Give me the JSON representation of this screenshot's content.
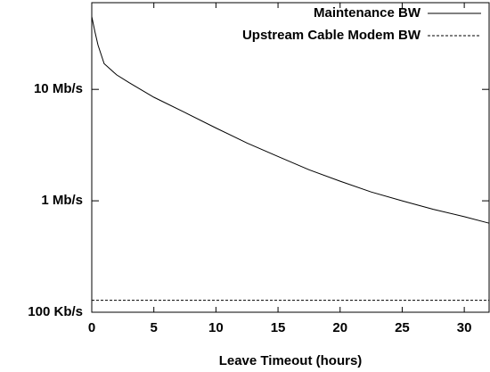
{
  "chart_data": {
    "type": "line",
    "xlabel": "Leave Timeout (hours)",
    "xlim": [
      0,
      32
    ],
    "xticks": [
      0,
      5,
      10,
      15,
      20,
      25,
      30
    ],
    "ylim": [
      0.1,
      60
    ],
    "yscale": "log",
    "yticks": [
      {
        "value": 0.1,
        "label": "100 Kb/s"
      },
      {
        "value": 1,
        "label": "1 Mb/s"
      },
      {
        "value": 10,
        "label": "10 Mb/s"
      }
    ],
    "legend": "upper right",
    "series": [
      {
        "name": "Maintenance BW",
        "color": "#000000",
        "linestyle": "solid",
        "x": [
          0,
          0.25,
          0.5,
          1,
          2,
          3,
          5,
          7.5,
          10,
          12.5,
          15,
          17.5,
          20,
          22.5,
          25,
          27.5,
          30,
          32
        ],
        "values": [
          45,
          33,
          25,
          17,
          13.5,
          11.5,
          8.5,
          6.2,
          4.5,
          3.3,
          2.5,
          1.9,
          1.5,
          1.2,
          1.0,
          0.84,
          0.72,
          0.63
        ]
      },
      {
        "name": "Upstream Cable Modem BW",
        "color": "#000000",
        "linestyle": "dashed",
        "x": [
          0,
          32
        ],
        "values": [
          0.128,
          0.128
        ]
      }
    ]
  }
}
